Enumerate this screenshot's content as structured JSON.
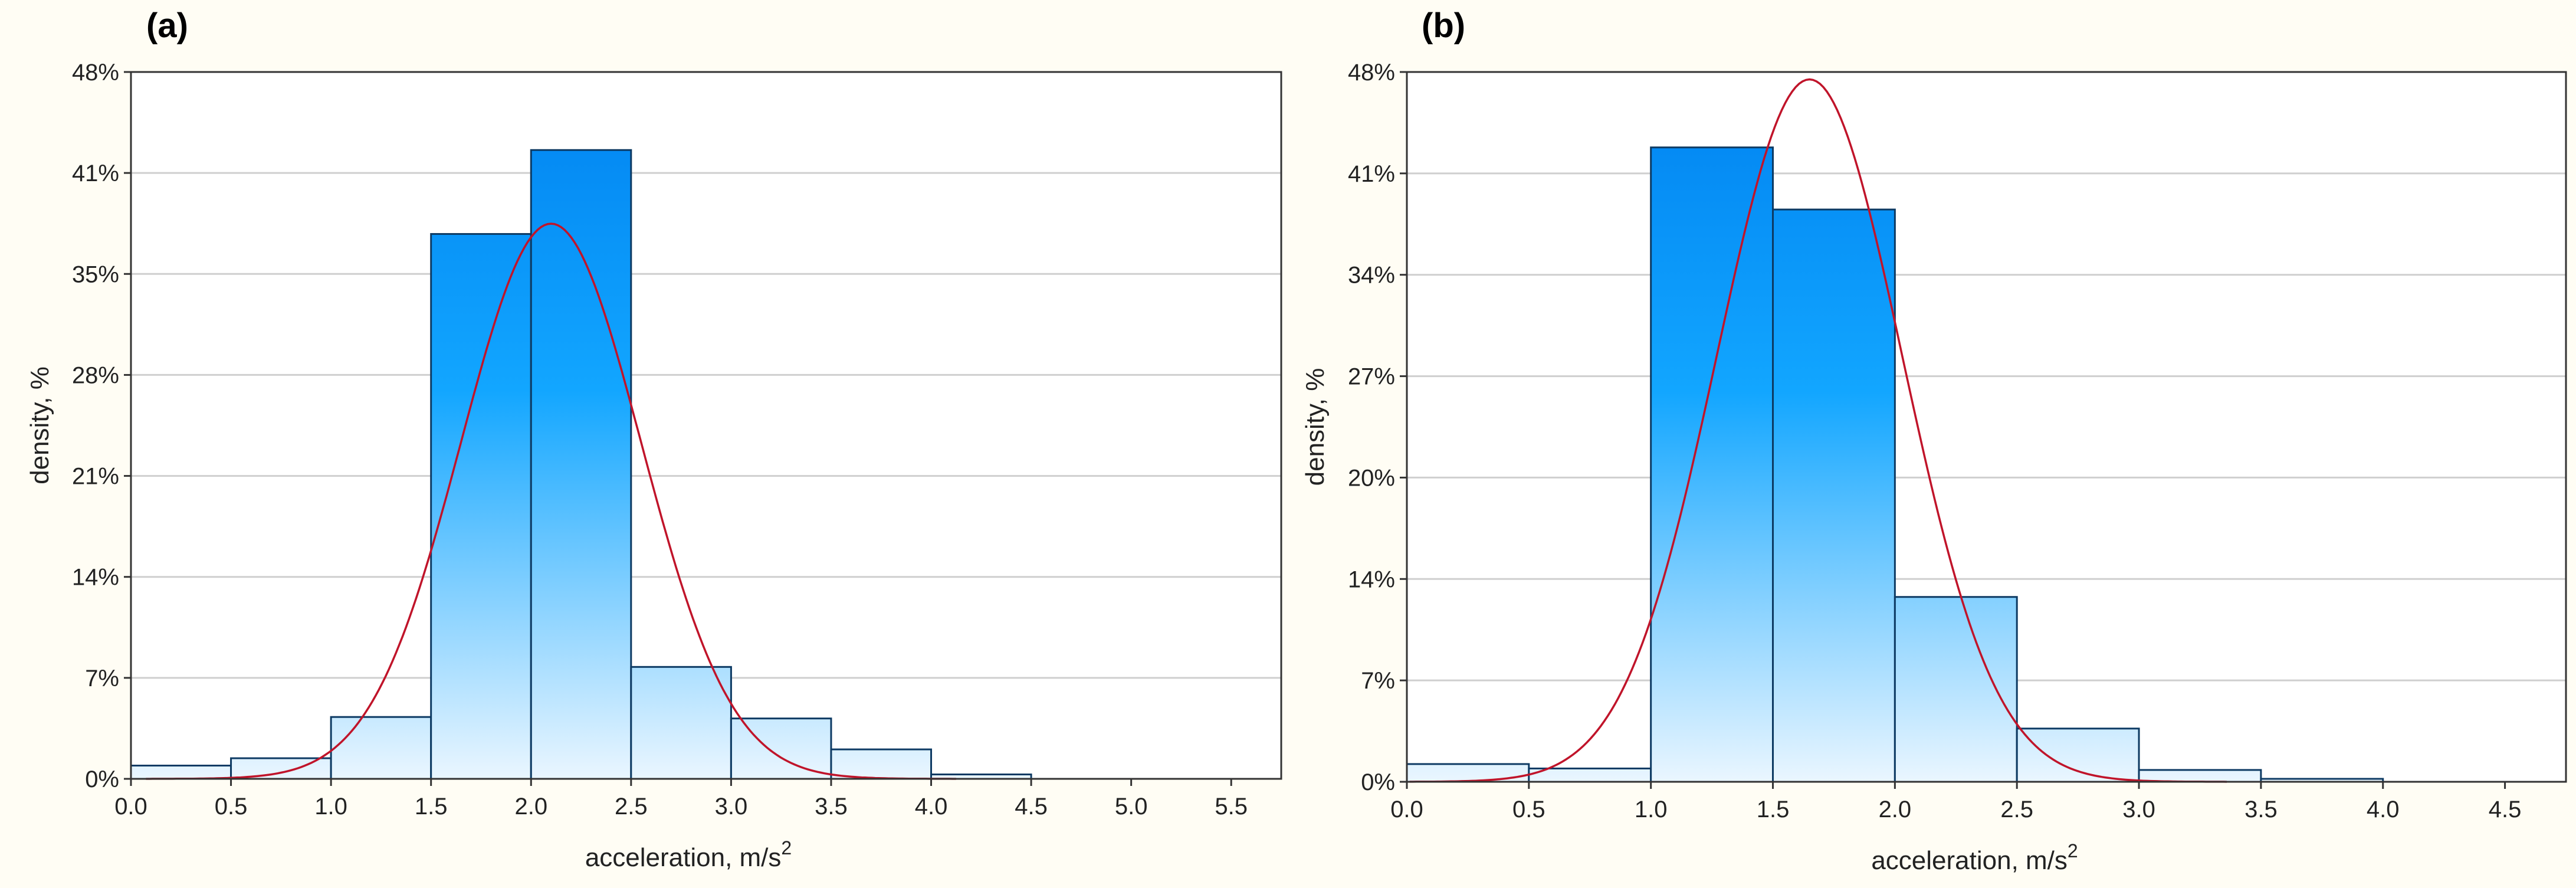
{
  "chart_data": [
    {
      "panel_label": "(a)",
      "type": "bar",
      "histogram": true,
      "xlabel": "acceleration, m/s",
      "xlabel_superscript": "2",
      "ylabel": "density, %",
      "xlim": [
        0.0,
        5.75
      ],
      "ylim": [
        0,
        48
      ],
      "x_ticks": [
        "0.0",
        "0.5",
        "1.0",
        "1.5",
        "2.0",
        "2.5",
        "3.0",
        "3.5",
        "4.0",
        "4.5",
        "5.0",
        "5.5"
      ],
      "y_ticks": [
        "0%",
        "7%",
        "14%",
        "21%",
        "28%",
        "35%",
        "41%",
        "48%"
      ],
      "bins": [
        {
          "from": 0.0,
          "to": 0.5,
          "value": 0.9
        },
        {
          "from": 0.5,
          "to": 1.0,
          "value": 1.4
        },
        {
          "from": 1.0,
          "to": 1.5,
          "value": 4.2
        },
        {
          "from": 1.5,
          "to": 2.0,
          "value": 37.0
        },
        {
          "from": 2.0,
          "to": 2.5,
          "value": 42.7
        },
        {
          "from": 2.5,
          "to": 3.0,
          "value": 7.6
        },
        {
          "from": 3.0,
          "to": 3.5,
          "value": 4.1
        },
        {
          "from": 3.5,
          "to": 4.0,
          "value": 2.0
        },
        {
          "from": 4.0,
          "to": 4.5,
          "value": 0.3
        }
      ],
      "normal_fit": {
        "mean": 2.1,
        "peak": 37.7,
        "sd": 0.45
      },
      "grid": true,
      "colors": {
        "bar_top": "#0082f0",
        "bar_bottom": "#eaf6ff",
        "bar_stroke": "#0d3a63",
        "curve": "#c0142a",
        "grid": "#cfcfcf"
      }
    },
    {
      "panel_label": "(b)",
      "type": "bar",
      "histogram": true,
      "xlabel": "acceleration, m/s",
      "xlabel_superscript": "2",
      "ylabel": "density, %",
      "xlim": [
        0.0,
        4.75
      ],
      "ylim": [
        0,
        48
      ],
      "x_ticks": [
        "0.0",
        "0.5",
        "1.0",
        "1.5",
        "2.0",
        "2.5",
        "3.0",
        "3.5",
        "4.0",
        "4.5"
      ],
      "y_ticks": [
        "0%",
        "7%",
        "14%",
        "20%",
        "27%",
        "34%",
        "41%",
        "48%"
      ],
      "bins": [
        {
          "from": 0.0,
          "to": 0.5,
          "value": 1.2
        },
        {
          "from": 0.5,
          "to": 1.0,
          "value": 0.9
        },
        {
          "from": 1.0,
          "to": 1.5,
          "value": 42.9
        },
        {
          "from": 1.5,
          "to": 2.0,
          "value": 38.7
        },
        {
          "from": 2.0,
          "to": 2.5,
          "value": 12.5
        },
        {
          "from": 2.5,
          "to": 3.0,
          "value": 3.6
        },
        {
          "from": 3.0,
          "to": 3.5,
          "value": 0.8
        },
        {
          "from": 3.5,
          "to": 4.0,
          "value": 0.2
        }
      ],
      "normal_fit": {
        "mean": 1.65,
        "peak": 47.5,
        "sd": 0.38
      },
      "grid": true,
      "colors": {
        "bar_top": "#0082f0",
        "bar_bottom": "#eaf6ff",
        "bar_stroke": "#0d3a63",
        "curve": "#c0142a",
        "grid": "#cfcfcf"
      }
    }
  ]
}
